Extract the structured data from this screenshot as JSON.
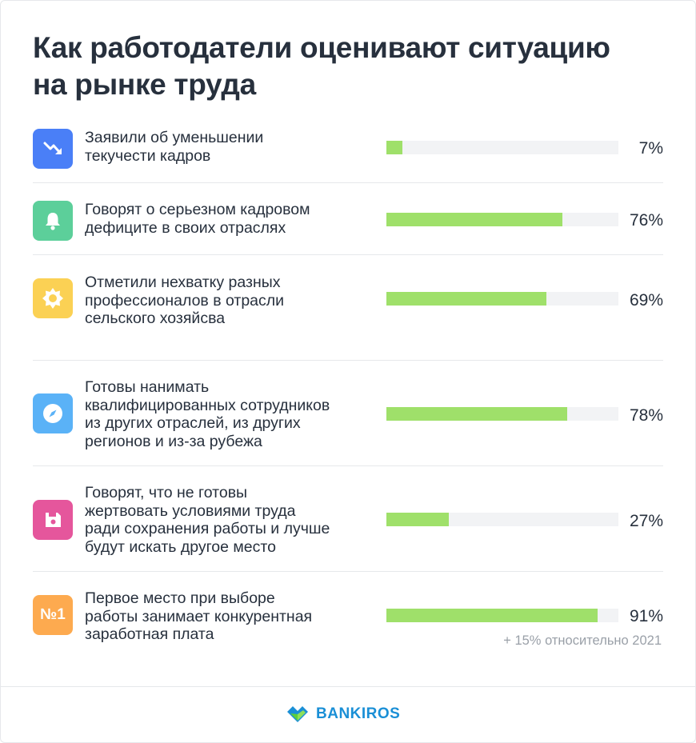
{
  "title": "Как работодатели оценивают ситуацию на рынке труда",
  "chart_data": {
    "type": "bar",
    "orientation": "horizontal",
    "xlim": [
      0,
      100
    ],
    "categories": [
      "Заявили об уменьшении\nтекучести кадров",
      "Говорят о серьезном  кадровом\nдефиците в своих отраслях",
      "Отметили нехватку разных\nпрофессионалов в отрасли\nсельского хозяйсва",
      "Готовы нанимать\nквалифицированных сотрудников\nиз других отраслей, из других\nрегионов  и из-за рубежа",
      "Говорят, что не готовы\nжертвовать условиями труда\nради  сохранения работы и лучше\nбудут искать другое место",
      "Первое место при выборе\nработы занимает конкурентная\nзаработная плата"
    ],
    "values": [
      7,
      76,
      69,
      78,
      27,
      91
    ],
    "value_labels": [
      "7%",
      "76%",
      "69%",
      "78%",
      "27%",
      "91%"
    ],
    "annotation": "+ 15% относительно 2021",
    "bar_color": "#9fe06a",
    "track_color": "#f2f3f5"
  },
  "icons": [
    {
      "name": "trend-down-icon",
      "color": "#4a7ff7"
    },
    {
      "name": "bell-icon",
      "color": "#5ccf9a"
    },
    {
      "name": "sun-icon",
      "color": "#fbd154"
    },
    {
      "name": "compass-icon",
      "color": "#5ab2f7"
    },
    {
      "name": "floppy-icon",
      "color": "#e5569c"
    },
    {
      "name": "number-one-icon",
      "color": "#fdaa4f",
      "text": "№1"
    }
  ],
  "footer": {
    "brand": "BANKIROS"
  }
}
